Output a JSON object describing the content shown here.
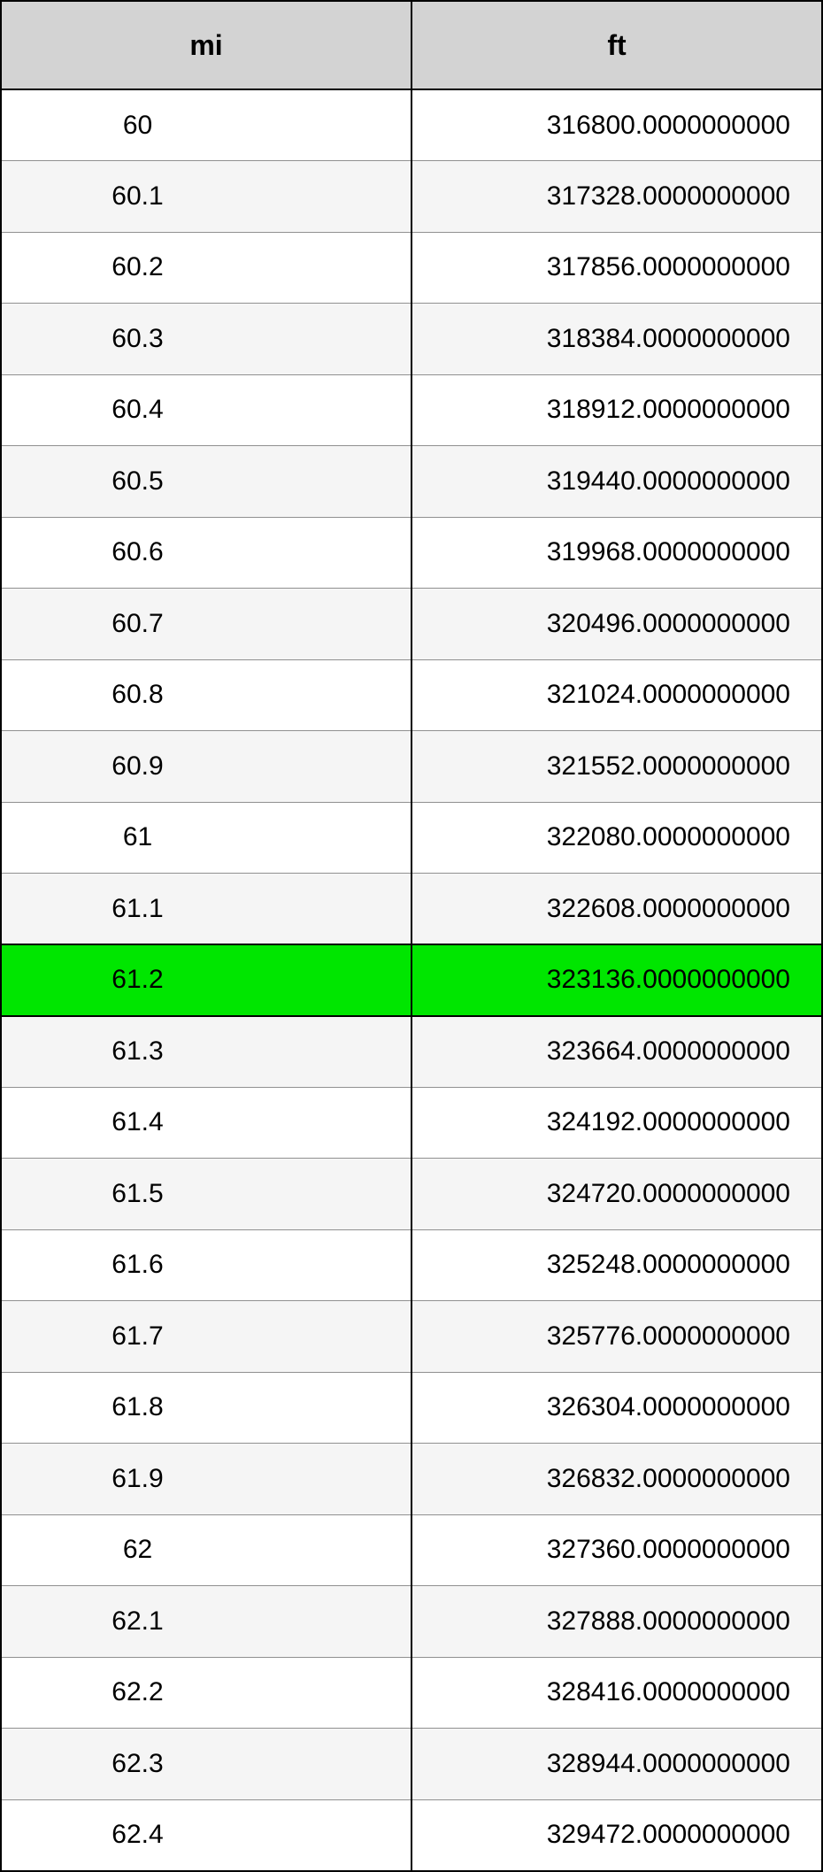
{
  "table": {
    "type": "table",
    "columns": [
      "mi",
      "ft"
    ],
    "header_bg": "#d3d3d3",
    "header_font_size": 32,
    "cell_font_size": 30,
    "border_color": "#000000",
    "inner_border_color": "#909090",
    "row_bg_even": "#ffffff",
    "row_bg_odd": "#f5f5f5",
    "highlight_bg": "#00e600",
    "highlight_index": 12,
    "rows": [
      {
        "mi": "60",
        "ft": "316800.0000000000"
      },
      {
        "mi": "60.1",
        "ft": "317328.0000000000"
      },
      {
        "mi": "60.2",
        "ft": "317856.0000000000"
      },
      {
        "mi": "60.3",
        "ft": "318384.0000000000"
      },
      {
        "mi": "60.4",
        "ft": "318912.0000000000"
      },
      {
        "mi": "60.5",
        "ft": "319440.0000000000"
      },
      {
        "mi": "60.6",
        "ft": "319968.0000000000"
      },
      {
        "mi": "60.7",
        "ft": "320496.0000000000"
      },
      {
        "mi": "60.8",
        "ft": "321024.0000000000"
      },
      {
        "mi": "60.9",
        "ft": "321552.0000000000"
      },
      {
        "mi": "61",
        "ft": "322080.0000000000"
      },
      {
        "mi": "61.1",
        "ft": "322608.0000000000"
      },
      {
        "mi": "61.2",
        "ft": "323136.0000000000"
      },
      {
        "mi": "61.3",
        "ft": "323664.0000000000"
      },
      {
        "mi": "61.4",
        "ft": "324192.0000000000"
      },
      {
        "mi": "61.5",
        "ft": "324720.0000000000"
      },
      {
        "mi": "61.6",
        "ft": "325248.0000000000"
      },
      {
        "mi": "61.7",
        "ft": "325776.0000000000"
      },
      {
        "mi": "61.8",
        "ft": "326304.0000000000"
      },
      {
        "mi": "61.9",
        "ft": "326832.0000000000"
      },
      {
        "mi": "62",
        "ft": "327360.0000000000"
      },
      {
        "mi": "62.1",
        "ft": "327888.0000000000"
      },
      {
        "mi": "62.2",
        "ft": "328416.0000000000"
      },
      {
        "mi": "62.3",
        "ft": "328944.0000000000"
      },
      {
        "mi": "62.4",
        "ft": "329472.0000000000"
      }
    ]
  }
}
